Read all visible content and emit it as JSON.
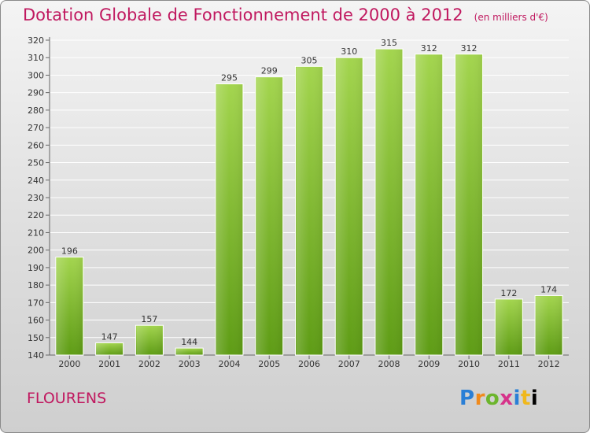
{
  "header": {
    "title": "Dotation Globale de Fonctionnement de 2000 à 2012",
    "unit": "(en milliers d'€)"
  },
  "footer": {
    "place": "FLOURENS",
    "logo": "Proxiti"
  },
  "colors": {
    "title": "#c0185f",
    "bar_top": "#9fd24a",
    "bar_bottom": "#5f9f16",
    "axis": "#555555"
  },
  "chart_data": {
    "type": "bar",
    "title": "Dotation Globale de Fonctionnement de 2000 à 2012",
    "subtitle": "(en milliers d'€)",
    "xlabel": "",
    "ylabel": "",
    "categories": [
      "2000",
      "2001",
      "2002",
      "2003",
      "2004",
      "2005",
      "2006",
      "2007",
      "2008",
      "2009",
      "2010",
      "2011",
      "2012"
    ],
    "values": [
      196,
      147,
      157,
      144,
      295,
      299,
      305,
      310,
      315,
      312,
      312,
      172,
      174
    ],
    "ylim": [
      140,
      320
    ],
    "yticks": [
      140,
      150,
      160,
      170,
      180,
      190,
      200,
      210,
      220,
      230,
      240,
      250,
      260,
      270,
      280,
      290,
      300,
      310,
      320
    ],
    "grid": true,
    "legend": "none"
  }
}
